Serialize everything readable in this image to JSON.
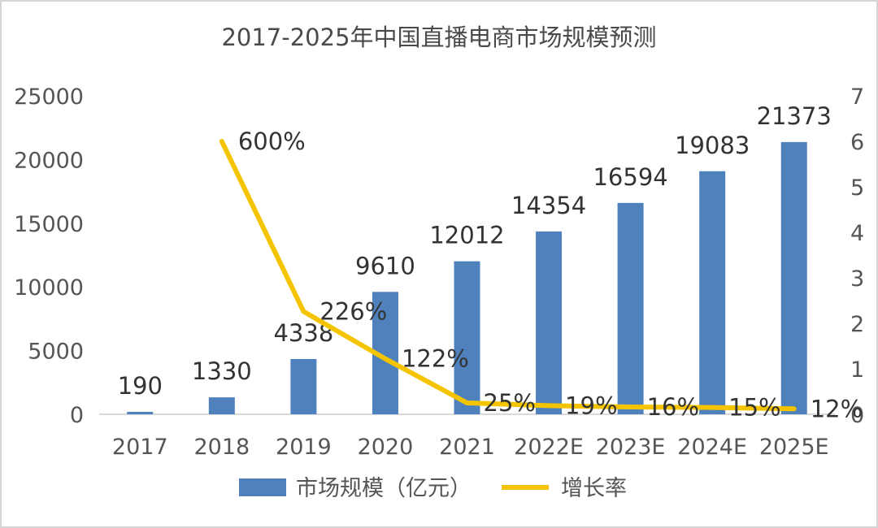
{
  "chart_data": {
    "type": "bar+line",
    "title": "2017-2025年中国直播电商市场规模预测",
    "categories": [
      "2017",
      "2018",
      "2019",
      "2020",
      "2021",
      "2022E",
      "2023E",
      "2024E",
      "2025E"
    ],
    "series": [
      {
        "name": "市场规模（亿元）",
        "type": "bar",
        "axis": "left",
        "color": "#4f81bd",
        "values": [
          190,
          1330,
          4338,
          9610,
          12012,
          14354,
          16594,
          19083,
          21373
        ],
        "labels": [
          "190",
          "1330",
          "4338",
          "9610",
          "12012",
          "14354",
          "16594",
          "19083",
          "21373"
        ]
      },
      {
        "name": "增长率",
        "type": "line",
        "axis": "right",
        "color": "#f5c400",
        "values": [
          null,
          6.0,
          2.26,
          1.22,
          0.25,
          0.19,
          0.16,
          0.15,
          0.12
        ],
        "labels": [
          "",
          "600%",
          "226%",
          "122%",
          "25%",
          "19%",
          "16%",
          "15%",
          "12%"
        ]
      }
    ],
    "y_left": {
      "min": 0,
      "max": 25000,
      "ticks": [
        "0",
        "5000",
        "10000",
        "15000",
        "20000",
        "25000"
      ]
    },
    "y_right": {
      "min": 0,
      "max": 7,
      "ticks": [
        "0",
        "1",
        "2",
        "3",
        "4",
        "5",
        "6",
        "7"
      ]
    },
    "grid": false,
    "legend": "bottom"
  }
}
